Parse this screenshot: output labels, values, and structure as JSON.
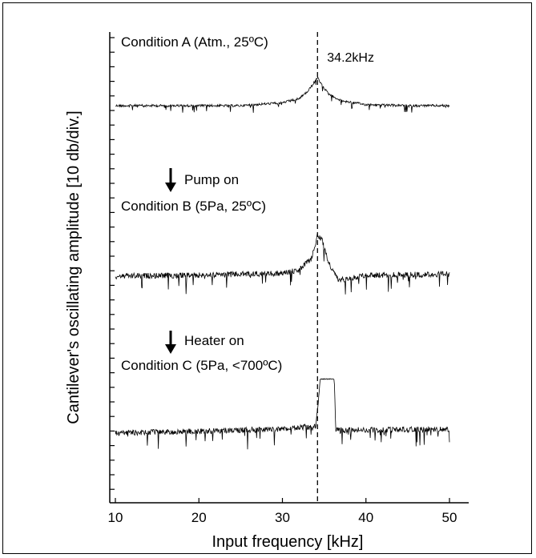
{
  "chart_data": {
    "type": "line",
    "xlabel": "Input frequency [kHz]",
    "ylabel": "Cantilever's oscillating amplitude [10 db/div.]",
    "xlim": [
      10,
      50
    ],
    "x_ticks": [
      "10",
      "20",
      "30",
      "40",
      "50"
    ],
    "peak_marker": {
      "x": 34.2,
      "label": "34.2kHz"
    },
    "arrows": [
      {
        "label": "Pump on"
      },
      {
        "label": "Heater on"
      }
    ],
    "series": [
      {
        "name": "Condition A (Atm., 25ºC)",
        "x": [
          10,
          20,
          25,
          30,
          32,
          33,
          33.8,
          34.2,
          34.6,
          35.5,
          37,
          40,
          45,
          50
        ],
        "y": [
          0,
          0,
          0,
          0.3,
          0.7,
          1.4,
          2.3,
          2.8,
          2.2,
          1.2,
          0.5,
          0.1,
          0,
          0
        ]
      },
      {
        "name": "Condition B (5Pa, 25ºC)",
        "x": [
          10,
          20,
          30,
          32,
          33.5,
          34.2,
          34.8,
          35.3,
          35.7,
          36.2,
          36.7,
          40,
          50
        ],
        "y": [
          0,
          0.1,
          0.3,
          0.6,
          1.8,
          4.1,
          3.5,
          2.0,
          1.0,
          0.3,
          -0.4,
          0.1,
          0.2
        ]
      },
      {
        "name": "Condition C (5Pa, <700ºC)",
        "x": [
          10,
          20,
          30,
          34,
          34.3,
          34.5,
          36.2,
          36.4,
          37,
          50
        ],
        "y": [
          0,
          0.2,
          0.4,
          0.7,
          3.0,
          5.4,
          5.4,
          0.3,
          0.3,
          0.4
        ]
      }
    ]
  }
}
